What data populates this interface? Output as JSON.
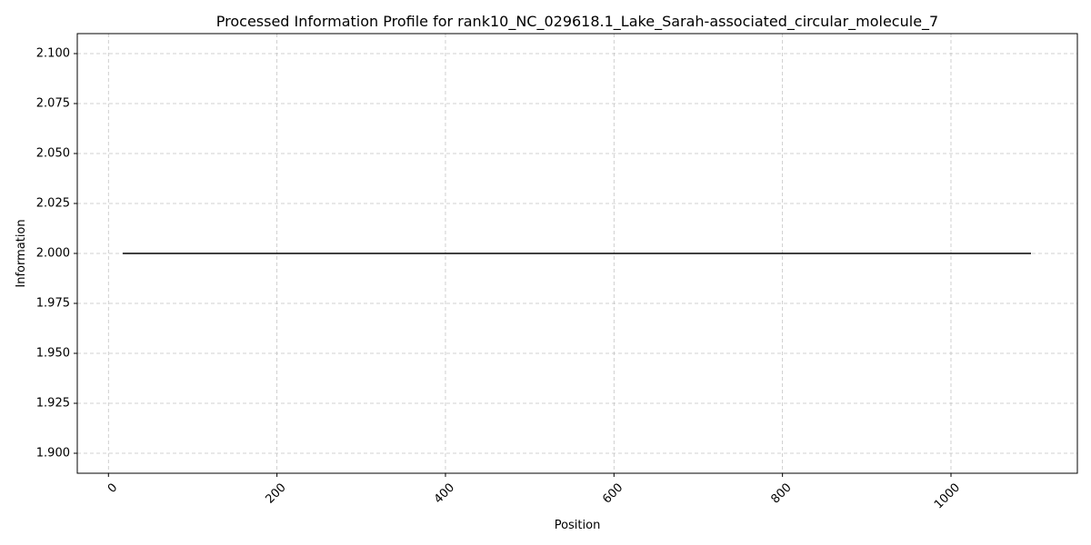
{
  "chart_data": {
    "type": "line",
    "title": "Processed Information Profile for rank10_NC_029618.1_Lake_Sarah-associated_circular_molecule_7",
    "xlabel": "Position",
    "ylabel": "Information",
    "xlim": [
      -37,
      1150
    ],
    "ylim": [
      1.89,
      2.11
    ],
    "x_ticks": [
      0,
      200,
      400,
      600,
      800,
      1000
    ],
    "x_tick_labels": [
      "0",
      "200",
      "400",
      "600",
      "800",
      "1000"
    ],
    "x_tick_rotation": 45,
    "y_ticks": [
      1.9,
      1.925,
      1.95,
      1.975,
      2.0,
      2.025,
      2.05,
      2.075,
      2.1
    ],
    "y_tick_labels": [
      "1.900",
      "1.925",
      "1.950",
      "1.975",
      "2.000",
      "2.025",
      "2.050",
      "2.075",
      "2.100"
    ],
    "grid": true,
    "series": [
      {
        "x": [
          17,
          1095
        ],
        "y": [
          2.0,
          2.0
        ],
        "color": "#000000"
      }
    ]
  }
}
